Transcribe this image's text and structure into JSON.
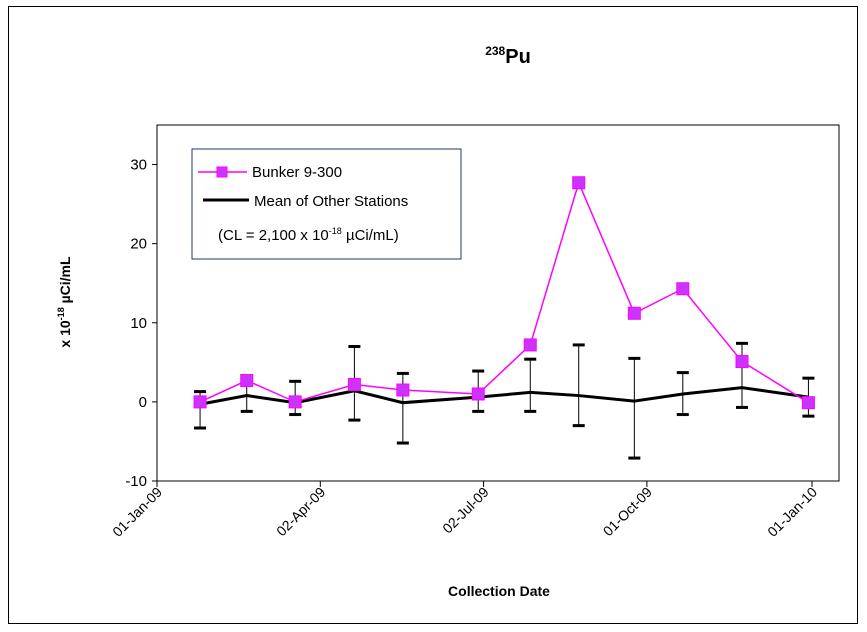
{
  "chart_data": {
    "type": "line",
    "title": {
      "sup": "238",
      "main": "Pu"
    },
    "xlabel": "Collection Date",
    "ylabel": {
      "pre": "x 10",
      "sup": "-18",
      "post": " µCi/mL"
    },
    "ylim": [
      -10,
      35
    ],
    "yticks": [
      -10,
      0,
      10,
      20,
      30
    ],
    "xlim": [
      "2009-01-01",
      "2010-01-01"
    ],
    "xticks": [
      {
        "date": "2009-01-01",
        "label": "01-Jan-09"
      },
      {
        "date": "2009-04-02",
        "label": "02-Apr-09"
      },
      {
        "date": "2009-07-02",
        "label": "02-Jul-09"
      },
      {
        "date": "2009-10-01",
        "label": "01-Oct-09"
      },
      {
        "date": "2010-01-01",
        "label": "01-Jan-10"
      }
    ],
    "series": [
      {
        "name": "Bunker 9-300",
        "color": "#ff00ff",
        "marker": "square",
        "marker_fill": "#cc33ff",
        "x": [
          "2009-01-25",
          "2009-02-20",
          "2009-03-19",
          "2009-04-21",
          "2009-05-18",
          "2009-06-29",
          "2009-07-28",
          "2009-08-24",
          "2009-09-24",
          "2009-10-21",
          "2009-11-23",
          "2009-12-30"
        ],
        "y": [
          0,
          2.7,
          0,
          2.2,
          1.5,
          1.0,
          7.2,
          27.7,
          11.2,
          14.3,
          5.1,
          -0.1
        ]
      },
      {
        "name": "Mean of  Other Stations",
        "color": "#000000",
        "x": [
          "2009-01-25",
          "2009-02-20",
          "2009-03-19",
          "2009-04-21",
          "2009-05-18",
          "2009-06-29",
          "2009-07-28",
          "2009-08-24",
          "2009-09-24",
          "2009-10-21",
          "2009-11-23",
          "2009-12-30"
        ],
        "y": [
          -0.3,
          0.8,
          -0.1,
          1.4,
          -0.1,
          0.6,
          1.2,
          0.8,
          0.1,
          1.0,
          1.8,
          0.6
        ],
        "error_low": [
          -3.3,
          -1.2,
          -1.6,
          -2.3,
          -5.2,
          -1.2,
          -1.2,
          -3.0,
          -7.1,
          -1.6,
          -0.7,
          -1.8
        ],
        "error_high": [
          1.3,
          3.1,
          2.6,
          7.0,
          3.6,
          3.9,
          5.4,
          7.2,
          5.5,
          3.7,
          7.4,
          3.0
        ]
      }
    ],
    "legend": {
      "placement": "top-left",
      "note": {
        "pre": "(CL = 2,100 x 10",
        "sup": "-18",
        "post": " µCi/mL)"
      }
    },
    "grid": false
  }
}
